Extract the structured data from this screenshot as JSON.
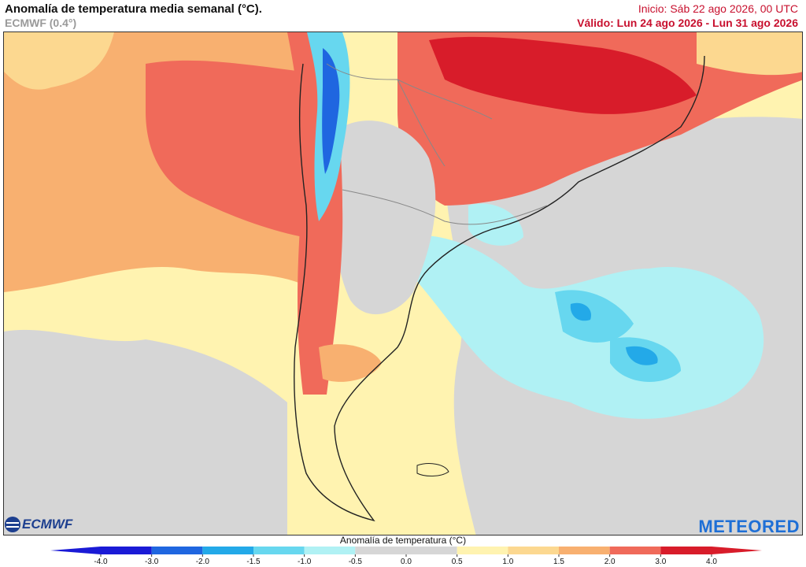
{
  "header": {
    "title": "Anomalía de temperatura media semanal (°C).",
    "model": "ECMWF (0.4°)",
    "init": "Inicio: Sáb 22 ago 2026, 00 UTC",
    "valid": "Válido: Lun 24 ago 2026 - Lun 31 ago 2026"
  },
  "logos": {
    "left": "ECMWF",
    "right": "METEORED"
  },
  "legend": {
    "title": "Anomalía de temperatura (°C)",
    "ticks": [
      "-4.0",
      "-3.0",
      "-2.0",
      "-1.5",
      "-1.0",
      "-0.5",
      "0.0",
      "0.5",
      "1.0",
      "1.5",
      "2.0",
      "3.0",
      "4.0"
    ],
    "colors": [
      "#1a1ad6",
      "#1f66e0",
      "#23a9e8",
      "#67d7ef",
      "#b0f1f4",
      "#d6d6d6",
      "#d6d6d6",
      "#fff3b0",
      "#fcd890",
      "#f8b070",
      "#f06a5a",
      "#d81c2a"
    ]
  },
  "palette": {
    "ocean_gray": "#d6d6d6",
    "pale_yellow": "#fff3b0",
    "light_orange": "#fcd890",
    "orange": "#f8b070",
    "red": "#f06a5a",
    "dark_red": "#d81c2a",
    "light_cyan": "#b0f1f4",
    "cyan": "#67d7ef",
    "blue": "#23a9e8",
    "dark_blue": "#1f66e0"
  }
}
